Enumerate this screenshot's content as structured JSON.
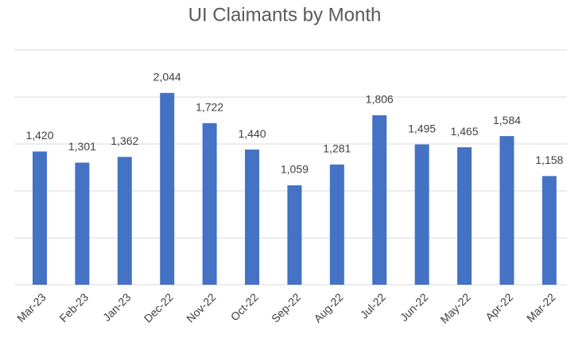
{
  "chart_data": {
    "type": "bar",
    "title": "UI Claimants by Month",
    "categories": [
      "Mar-23",
      "Feb-23",
      "Jan-23",
      "Dec-22",
      "Nov-22",
      "Oct-22",
      "Sep-22",
      "Aug-22",
      "Jul-22",
      "Jun-22",
      "May-22",
      "Apr-22",
      "Mar-22"
    ],
    "values": [
      1420,
      1301,
      1362,
      2044,
      1722,
      1440,
      1059,
      1281,
      1806,
      1495,
      1465,
      1584,
      1158
    ],
    "value_labels": [
      "1,420",
      "1,301",
      "1,362",
      "2,044",
      "1,722",
      "1,440",
      "1,059",
      "1,281",
      "1,806",
      "1,495",
      "1,465",
      "1,584",
      "1,158"
    ],
    "color": "#4472c4",
    "ylim": [
      0,
      2500
    ],
    "yticks": [
      0,
      500,
      1000,
      1500,
      2000,
      2500
    ],
    "grid": true
  }
}
